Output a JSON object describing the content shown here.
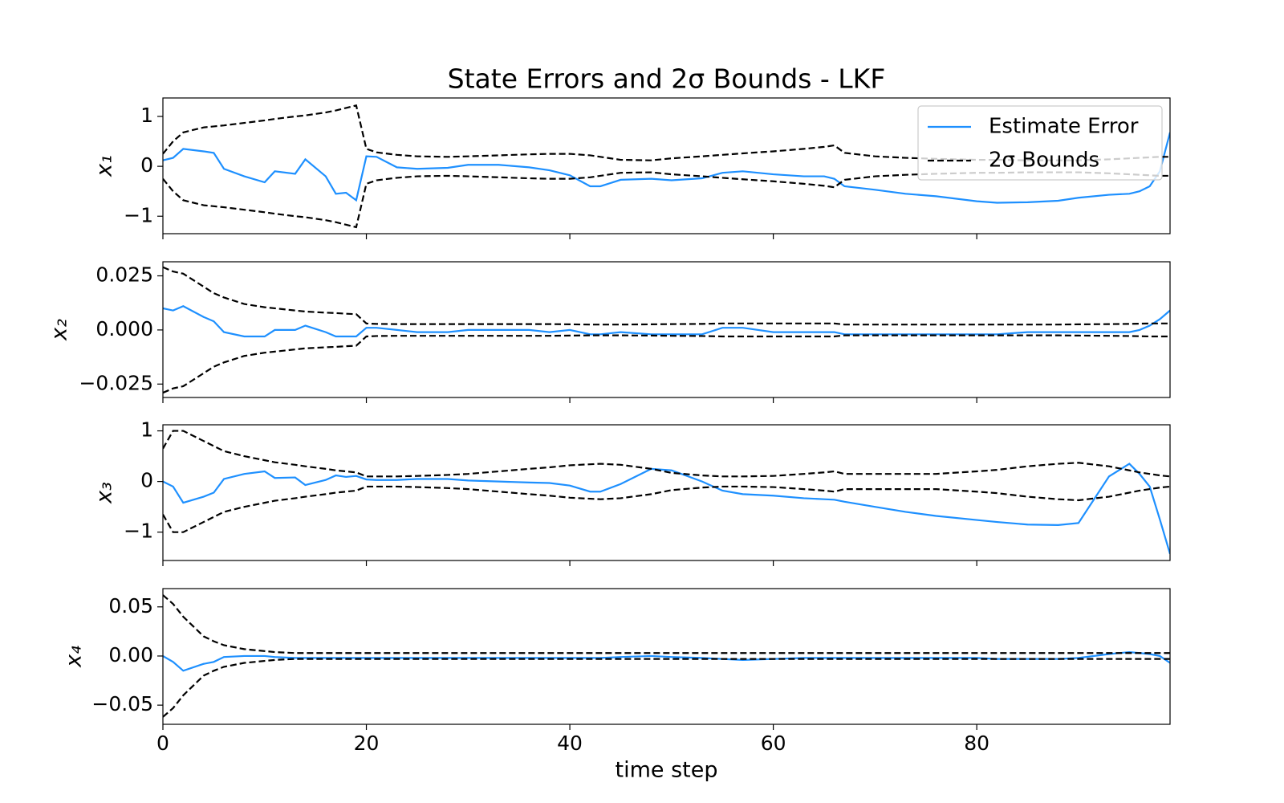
{
  "chart_data": [
    {
      "type": "line",
      "title": "State Errors and 2σ Bounds - LKF",
      "ylabel": "x₁",
      "legend": "upper right",
      "x": [
        0,
        1,
        2,
        4,
        5,
        6,
        8,
        10,
        11,
        13,
        14,
        16,
        17,
        18,
        19,
        20,
        21,
        23,
        25,
        28,
        30,
        33,
        36,
        38,
        40,
        42,
        43,
        45,
        48,
        50,
        53,
        55,
        57,
        60,
        63,
        65,
        66,
        67,
        70,
        73,
        76,
        80,
        82,
        85,
        88,
        90,
        93,
        95,
        96,
        97,
        98,
        99
      ],
      "xlim": [
        0,
        99
      ],
      "xticks": [
        0,
        20,
        40,
        60,
        80
      ],
      "ylim": [
        -1.35,
        1.37
      ],
      "yticks": [
        {
          "value": -1,
          "label": "−1"
        },
        0,
        1
      ],
      "series": [
        {
          "name": "Estimate Error",
          "color": "#1e90ff",
          "linestyle": "solid",
          "values": [
            0.12,
            0.17,
            0.35,
            0.3,
            0.27,
            -0.05,
            -0.2,
            -0.32,
            -0.1,
            -0.15,
            0.14,
            -0.2,
            -0.55,
            -0.53,
            -0.68,
            0.2,
            0.19,
            -0.02,
            -0.05,
            -0.03,
            0.03,
            0.03,
            -0.02,
            -0.08,
            -0.18,
            -0.4,
            -0.4,
            -0.27,
            -0.25,
            -0.28,
            -0.24,
            -0.13,
            -0.1,
            -0.16,
            -0.2,
            -0.2,
            -0.25,
            -0.4,
            -0.47,
            -0.55,
            -0.6,
            -0.7,
            -0.73,
            -0.72,
            -0.69,
            -0.63,
            -0.57,
            -0.55,
            -0.5,
            -0.4,
            -0.1,
            0.68
          ]
        },
        {
          "name": "2σ Bounds",
          "color": "#000000",
          "linestyle": "dashed",
          "values": [
            0.25,
            0.5,
            0.68,
            0.78,
            0.8,
            0.82,
            0.87,
            0.92,
            0.95,
            1.0,
            1.02,
            1.08,
            1.12,
            1.17,
            1.22,
            0.35,
            0.28,
            0.23,
            0.2,
            0.19,
            0.2,
            0.22,
            0.24,
            0.25,
            0.25,
            0.22,
            0.19,
            0.13,
            0.12,
            0.16,
            0.2,
            0.23,
            0.26,
            0.3,
            0.35,
            0.39,
            0.42,
            0.27,
            0.2,
            0.17,
            0.15,
            0.13,
            0.13,
            0.12,
            0.12,
            0.12,
            0.14,
            0.16,
            0.17,
            0.18,
            0.19,
            0.19
          ],
          "lower": [
            -0.25,
            -0.5,
            -0.68,
            -0.78,
            -0.8,
            -0.82,
            -0.87,
            -0.92,
            -0.95,
            -1.0,
            -1.02,
            -1.08,
            -1.12,
            -1.17,
            -1.22,
            -0.35,
            -0.28,
            -0.23,
            -0.2,
            -0.19,
            -0.2,
            -0.22,
            -0.24,
            -0.25,
            -0.25,
            -0.22,
            -0.19,
            -0.13,
            -0.12,
            -0.16,
            -0.2,
            -0.23,
            -0.26,
            -0.3,
            -0.35,
            -0.39,
            -0.42,
            -0.27,
            -0.2,
            -0.17,
            -0.15,
            -0.13,
            -0.13,
            -0.12,
            -0.12,
            -0.12,
            -0.14,
            -0.16,
            -0.17,
            -0.18,
            -0.19,
            -0.19
          ]
        }
      ]
    },
    {
      "type": "line",
      "ylabel": "x₂",
      "x": [
        0,
        1,
        2,
        4,
        5,
        6,
        8,
        10,
        11,
        13,
        14,
        16,
        17,
        18,
        19,
        20,
        21,
        23,
        25,
        28,
        30,
        33,
        36,
        38,
        40,
        42,
        43,
        45,
        48,
        50,
        53,
        55,
        57,
        60,
        63,
        65,
        66,
        67,
        70,
        73,
        76,
        80,
        82,
        85,
        88,
        90,
        93,
        95,
        96,
        97,
        98,
        99
      ],
      "xlim": [
        0,
        99
      ],
      "xticks": [
        0,
        20,
        40,
        60,
        80
      ],
      "ylim": [
        -0.0312,
        0.0315
      ],
      "yticks": [
        {
          "value": -0.025,
          "label": "−0.025"
        },
        {
          "value": 0,
          "label": "0.000"
        },
        {
          "value": 0.025,
          "label": "0.025"
        }
      ],
      "series": [
        {
          "name": "Estimate Error",
          "color": "#1e90ff",
          "linestyle": "solid",
          "values": [
            0.01,
            0.009,
            0.011,
            0.006,
            0.004,
            -0.001,
            -0.003,
            -0.003,
            0,
            0,
            0.002,
            -0.001,
            -0.003,
            -0.003,
            -0.003,
            0.001,
            0.001,
            0,
            -0.001,
            -0.001,
            0,
            0,
            0,
            -0.001,
            0,
            -0.002,
            -0.002,
            -0.001,
            -0.002,
            -0.002,
            -0.002,
            0.001,
            0.001,
            -0.001,
            -0.001,
            -0.001,
            -0.001,
            -0.002,
            -0.002,
            -0.002,
            -0.002,
            -0.002,
            -0.002,
            -0.001,
            -0.001,
            -0.001,
            -0.001,
            -0.001,
            0,
            0.002,
            0.005,
            0.009
          ]
        },
        {
          "name": "2σ Bounds",
          "color": "#000000",
          "linestyle": "dashed",
          "values": [
            0.029,
            0.027,
            0.026,
            0.02,
            0.017,
            0.015,
            0.012,
            0.0105,
            0.01,
            0.009,
            0.0085,
            0.008,
            0.0078,
            0.0075,
            0.0073,
            0.003,
            0.0028,
            0.0027,
            0.0027,
            0.0027,
            0.0027,
            0.0027,
            0.0027,
            0.0027,
            0.0026,
            0.0025,
            0.0025,
            0.0025,
            0.0026,
            0.0027,
            0.0028,
            0.003,
            0.003,
            0.003,
            0.003,
            0.003,
            0.003,
            0.0025,
            0.0025,
            0.0025,
            0.0025,
            0.0025,
            0.0025,
            0.0025,
            0.0025,
            0.0026,
            0.0027,
            0.0028,
            0.0029,
            0.003,
            0.003,
            0.003
          ],
          "lower": [
            -0.029,
            -0.027,
            -0.026,
            -0.02,
            -0.017,
            -0.015,
            -0.012,
            -0.0105,
            -0.01,
            -0.009,
            -0.0085,
            -0.008,
            -0.0078,
            -0.0075,
            -0.0073,
            -0.003,
            -0.0028,
            -0.0027,
            -0.0027,
            -0.0027,
            -0.0027,
            -0.0027,
            -0.0027,
            -0.0027,
            -0.0026,
            -0.0025,
            -0.0025,
            -0.0025,
            -0.0026,
            -0.0027,
            -0.0028,
            -0.003,
            -0.003,
            -0.003,
            -0.003,
            -0.003,
            -0.003,
            -0.0025,
            -0.0025,
            -0.0025,
            -0.0025,
            -0.0025,
            -0.0025,
            -0.0025,
            -0.0025,
            -0.0026,
            -0.0027,
            -0.0028,
            -0.0029,
            -0.003,
            -0.003,
            -0.003
          ]
        }
      ]
    },
    {
      "type": "line",
      "ylabel": "x₃",
      "x": [
        0,
        1,
        2,
        4,
        5,
        6,
        8,
        10,
        11,
        13,
        14,
        16,
        17,
        18,
        19,
        20,
        21,
        23,
        25,
        28,
        30,
        33,
        36,
        38,
        40,
        42,
        43,
        45,
        48,
        50,
        53,
        55,
        57,
        60,
        63,
        65,
        66,
        67,
        70,
        73,
        76,
        80,
        82,
        85,
        88,
        90,
        93,
        95,
        96,
        97,
        98,
        99
      ],
      "xlim": [
        0,
        99
      ],
      "xticks": [
        0,
        20,
        40,
        60,
        80
      ],
      "ylim": [
        -1.56,
        1.12
      ],
      "yticks": [
        {
          "value": -1,
          "label": "−1"
        },
        0,
        1
      ],
      "series": [
        {
          "name": "Estimate Error",
          "color": "#1e90ff",
          "linestyle": "solid",
          "values": [
            0,
            -0.1,
            -0.42,
            -0.3,
            -0.22,
            0.05,
            0.15,
            0.2,
            0.07,
            0.08,
            -0.07,
            0.03,
            0.12,
            0.09,
            0.11,
            0.04,
            0.03,
            0.03,
            0.05,
            0.05,
            0.02,
            0,
            -0.02,
            -0.03,
            -0.08,
            -0.2,
            -0.2,
            -0.05,
            0.25,
            0.22,
            0,
            -0.18,
            -0.25,
            -0.28,
            -0.33,
            -0.35,
            -0.36,
            -0.4,
            -0.5,
            -0.6,
            -0.68,
            -0.76,
            -0.8,
            -0.85,
            -0.86,
            -0.82,
            0.1,
            0.35,
            0.15,
            -0.1,
            -0.75,
            -1.43
          ]
        },
        {
          "name": "2σ Bounds",
          "color": "#000000",
          "linestyle": "dashed",
          "values": [
            0.65,
            1.0,
            1.0,
            0.8,
            0.7,
            0.6,
            0.5,
            0.42,
            0.38,
            0.33,
            0.3,
            0.25,
            0.22,
            0.2,
            0.18,
            0.1,
            0.1,
            0.1,
            0.11,
            0.13,
            0.15,
            0.2,
            0.25,
            0.28,
            0.32,
            0.34,
            0.35,
            0.33,
            0.25,
            0.17,
            0.12,
            0.1,
            0.1,
            0.11,
            0.15,
            0.18,
            0.2,
            0.15,
            0.15,
            0.15,
            0.15,
            0.2,
            0.23,
            0.3,
            0.35,
            0.37,
            0.3,
            0.22,
            0.18,
            0.15,
            0.12,
            0.1
          ],
          "lower": [
            -0.65,
            -1.0,
            -1.0,
            -0.8,
            -0.7,
            -0.6,
            -0.5,
            -0.42,
            -0.38,
            -0.33,
            -0.3,
            -0.25,
            -0.22,
            -0.2,
            -0.18,
            -0.1,
            -0.1,
            -0.1,
            -0.11,
            -0.13,
            -0.15,
            -0.2,
            -0.25,
            -0.28,
            -0.32,
            -0.34,
            -0.35,
            -0.33,
            -0.25,
            -0.17,
            -0.12,
            -0.1,
            -0.1,
            -0.11,
            -0.15,
            -0.18,
            -0.2,
            -0.15,
            -0.15,
            -0.15,
            -0.15,
            -0.2,
            -0.23,
            -0.3,
            -0.35,
            -0.37,
            -0.3,
            -0.22,
            -0.18,
            -0.15,
            -0.12,
            -0.1
          ]
        }
      ]
    },
    {
      "type": "line",
      "ylabel": "x₄",
      "xlabel": "time step",
      "x": [
        0,
        1,
        2,
        4,
        5,
        6,
        8,
        10,
        11,
        13,
        14,
        16,
        17,
        18,
        19,
        20,
        21,
        23,
        25,
        28,
        30,
        33,
        36,
        38,
        40,
        42,
        43,
        45,
        48,
        50,
        53,
        55,
        57,
        60,
        63,
        65,
        66,
        67,
        70,
        73,
        76,
        80,
        82,
        85,
        88,
        90,
        93,
        95,
        96,
        97,
        98,
        99
      ],
      "xlim": [
        0,
        99
      ],
      "xticks": [
        0,
        20,
        40,
        60,
        80
      ],
      "ylim": [
        -0.0695,
        0.0686
      ],
      "yticks": [
        {
          "value": -0.05,
          "label": "−0.05"
        },
        {
          "value": 0,
          "label": "0.00"
        },
        {
          "value": 0.05,
          "label": "0.05"
        }
      ],
      "series": [
        {
          "name": "Estimate Error",
          "color": "#1e90ff",
          "linestyle": "solid",
          "values": [
            0,
            -0.006,
            -0.015,
            -0.008,
            -0.006,
            -0.001,
            0,
            0,
            -0.001,
            -0.002,
            -0.002,
            -0.002,
            -0.002,
            -0.002,
            -0.002,
            -0.002,
            -0.002,
            -0.002,
            -0.002,
            -0.002,
            -0.002,
            -0.002,
            -0.002,
            -0.002,
            -0.002,
            -0.002,
            -0.002,
            -0.001,
            0,
            -0.001,
            -0.002,
            -0.003,
            -0.004,
            -0.003,
            -0.002,
            -0.002,
            -0.002,
            -0.002,
            -0.002,
            -0.002,
            -0.002,
            -0.002,
            -0.003,
            -0.003,
            -0.003,
            -0.002,
            0.002,
            0.004,
            0.003,
            0.002,
            0,
            -0.007
          ]
        },
        {
          "name": "2σ Bounds",
          "color": "#000000",
          "linestyle": "dashed",
          "values": [
            0.062,
            0.053,
            0.04,
            0.02,
            0.015,
            0.011,
            0.007,
            0.005,
            0.004,
            0.003,
            0.003,
            0.003,
            0.003,
            0.003,
            0.003,
            0.003,
            0.003,
            0.003,
            0.003,
            0.003,
            0.003,
            0.003,
            0.003,
            0.003,
            0.003,
            0.003,
            0.003,
            0.003,
            0.003,
            0.003,
            0.003,
            0.003,
            0.003,
            0.003,
            0.003,
            0.003,
            0.003,
            0.003,
            0.003,
            0.003,
            0.003,
            0.003,
            0.003,
            0.003,
            0.003,
            0.003,
            0.003,
            0.003,
            0.003,
            0.003,
            0.003,
            0.003
          ],
          "lower": [
            -0.062,
            -0.053,
            -0.04,
            -0.02,
            -0.015,
            -0.011,
            -0.007,
            -0.005,
            -0.004,
            -0.003,
            -0.003,
            -0.003,
            -0.003,
            -0.003,
            -0.003,
            -0.003,
            -0.003,
            -0.003,
            -0.003,
            -0.003,
            -0.003,
            -0.003,
            -0.003,
            -0.003,
            -0.003,
            -0.003,
            -0.003,
            -0.003,
            -0.003,
            -0.003,
            -0.003,
            -0.003,
            -0.003,
            -0.003,
            -0.003,
            -0.003,
            -0.003,
            -0.003,
            -0.003,
            -0.003,
            -0.003,
            -0.003,
            -0.003,
            -0.003,
            -0.003,
            -0.003,
            -0.003,
            -0.003,
            -0.003,
            -0.003,
            -0.003,
            -0.003
          ]
        }
      ]
    }
  ]
}
